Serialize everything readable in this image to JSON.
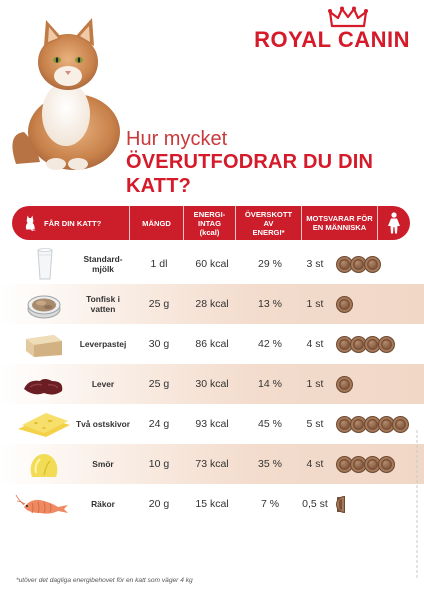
{
  "brand": {
    "name": "ROYAL CANIN",
    "color": "#d51a2a",
    "crown_icon": "crown-icon"
  },
  "headline": {
    "line1": "Hur mycket",
    "line2": "ÖVERUTFODRAR DU DIN KATT?"
  },
  "table": {
    "headers": {
      "food": "FÅR DIN KATT?",
      "amount": "MÄNGD",
      "energy": "ENERGI-\nINTAG\n(kcal)",
      "excess": "ÖVERSKOTT AV\nENERGI*",
      "equivalent": "MOTSVARAR FÖR\nEN MÄNNISKA"
    },
    "header_icons": {
      "left": "cat-icon",
      "right": "woman-icon"
    },
    "rows": [
      {
        "food": "Standard-\nmjölk",
        "amount": "1 dl",
        "kcal": "60 kcal",
        "excess": "29 %",
        "equivalent": "3 st",
        "cookies": 3,
        "image": "milk-glass-icon"
      },
      {
        "food": "Tonfisk i\nvatten",
        "amount": "25 g",
        "kcal": "28 kcal",
        "excess": "13 %",
        "equivalent": "1 st",
        "cookies": 1,
        "image": "tuna-can-icon"
      },
      {
        "food": "Leverpastej",
        "amount": "30 g",
        "kcal": "86 kcal",
        "excess": "42 %",
        "equivalent": "4 st",
        "cookies": 4,
        "image": "liver-pate-icon"
      },
      {
        "food": "Lever",
        "amount": "25 g",
        "kcal": "30 kcal",
        "excess": "14 %",
        "equivalent": "1 st",
        "cookies": 1,
        "image": "liver-icon"
      },
      {
        "food": "Två ostskivor",
        "amount": "24 g",
        "kcal": "93 kcal",
        "excess": "45 %",
        "equivalent": "5 st",
        "cookies": 5,
        "image": "cheese-slices-icon"
      },
      {
        "food": "Smör",
        "amount": "10 g",
        "kcal": "73 kcal",
        "excess": "35 %",
        "equivalent": "4 st",
        "cookies": 4,
        "image": "butter-icon"
      },
      {
        "food": "Räkor",
        "amount": "20 g",
        "kcal": "15 kcal",
        "excess": "7 %",
        "equivalent": "0,5 st",
        "cookies": 0.5,
        "image": "shrimp-icon"
      }
    ]
  },
  "footnote": "*utöver det dagliga energibehovet för en katt som väger 4 kg"
}
